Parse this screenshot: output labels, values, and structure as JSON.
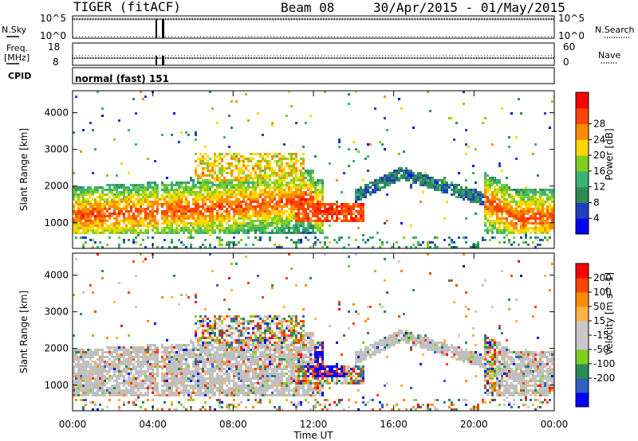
{
  "header": {
    "radar": "TIGER (fitACF)",
    "beam": "Beam 08",
    "dates": "30/Apr/2015 - 01/May/2015"
  },
  "strip_labels": {
    "nsky": "N.Sky",
    "nsearch": "N.Search",
    "freq_line1": "Freq.",
    "freq_line2": "[MHz]",
    "nave": "Nave",
    "cpid": "CPID",
    "cpid_value": "normal (fast) 151"
  },
  "strip_ticks": {
    "noise_left_top": "10^5",
    "noise_left_bottom": "10^0",
    "noise_right_top": "10^5",
    "noise_right_bottom": "10^0",
    "freq_left_top": "18",
    "freq_left_bottom": "8",
    "freq_right_top": "60",
    "freq_right_bottom": "0"
  },
  "colors": {
    "power_scale": [
      "#0000ff",
      "#2040c0",
      "#2e8b57",
      "#3cb371",
      "#7fd020",
      "#ffd700",
      "#ff8c00",
      "#ff4500",
      "#ff0000"
    ],
    "velocity_scale": [
      "#ff0000",
      "#ff4500",
      "#ff8c00",
      "#ffb347",
      "#c8c8c8",
      "#c8c8c8",
      "#7fd020",
      "#2e8b57",
      "#3060c0",
      "#0000ff"
    ],
    "ground_scatter": "#c0c0c0"
  },
  "chart_data": [
    {
      "type": "heatmap",
      "panel": "power",
      "ylabel": "Slant Range [km]",
      "yticks": [
        "1000",
        "2000",
        "3000",
        "4000"
      ],
      "ylim": [
        300,
        4600
      ],
      "xlim": [
        0,
        24
      ],
      "colorbar_label": "Power [dB]",
      "colorbar_ticks": [
        "4",
        "8",
        "12",
        "16",
        "20",
        "24",
        "28"
      ],
      "colorbar_range": [
        0,
        32
      ]
    },
    {
      "type": "heatmap",
      "panel": "velocity",
      "ylabel": "Slant Range [km]",
      "yticks": [
        "1000",
        "2000",
        "3000",
        "4000"
      ],
      "ylim": [
        300,
        4600
      ],
      "xlim": [
        0,
        24
      ],
      "colorbar_label": "Velocity [m s^-1]",
      "colorbar_ticks": [
        "200",
        "100",
        "50",
        "15",
        "-15",
        "-50",
        "-100",
        "-200"
      ]
    }
  ],
  "x_axis": {
    "ticks": [
      "00:00",
      "04:00",
      "08:00",
      "12:00",
      "16:00",
      "20:00",
      "00:00"
    ],
    "tick_hours": [
      0,
      4,
      8,
      12,
      16,
      20,
      24
    ],
    "label": "Time UT"
  }
}
